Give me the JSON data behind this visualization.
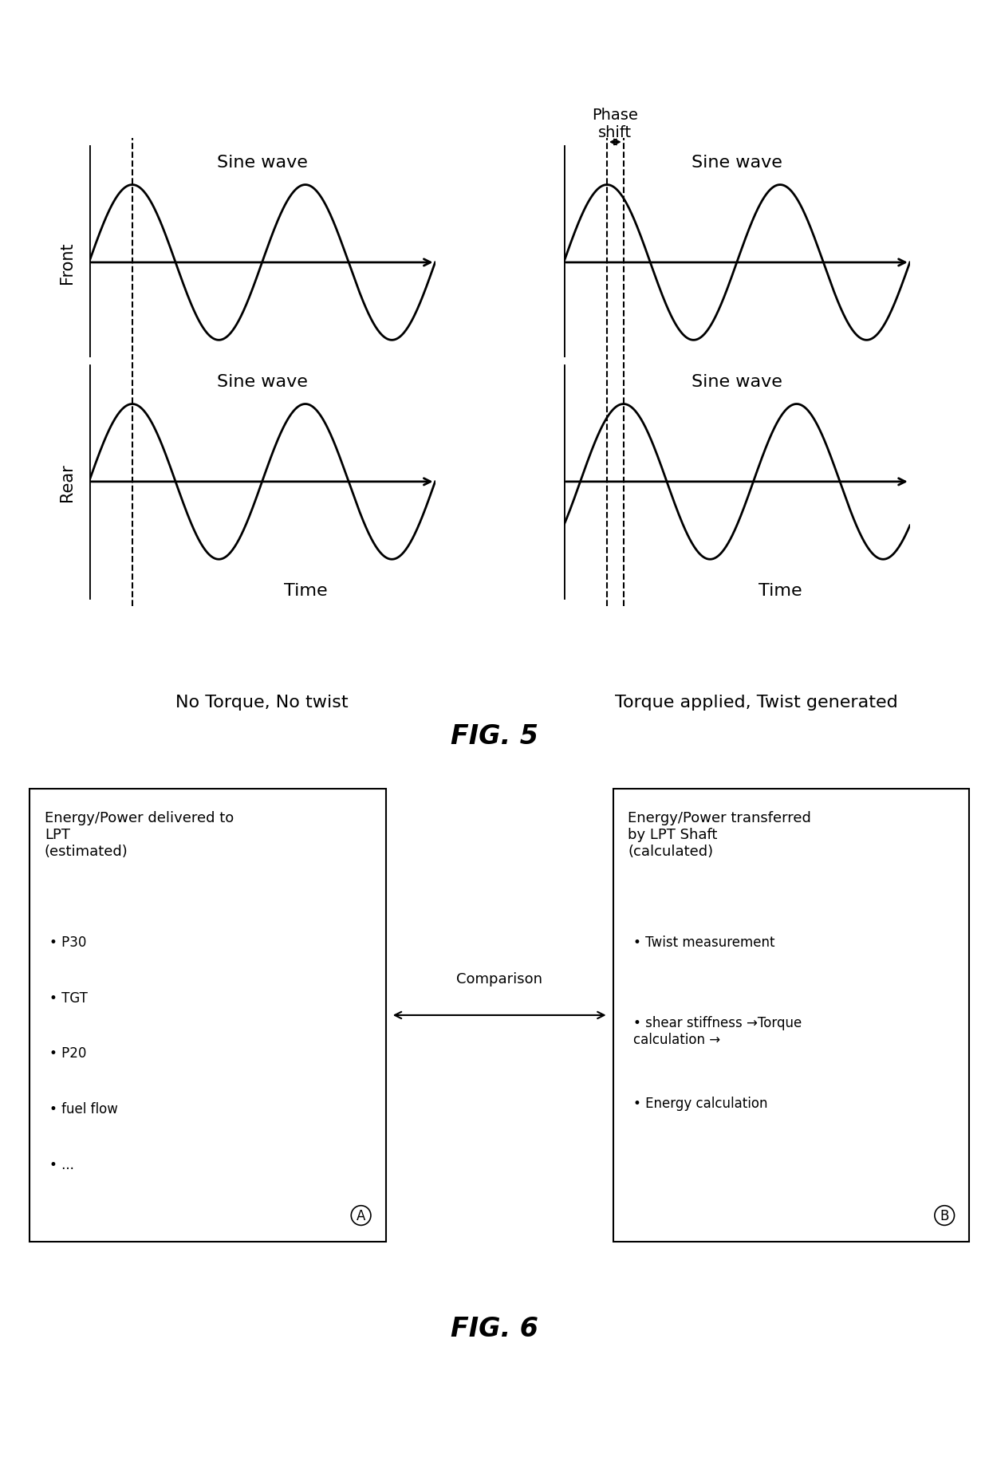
{
  "bg_color": "#ffffff",
  "fig_width": 12.4,
  "fig_height": 18.33,
  "fig5_title": "FIG. 5",
  "fig6_title": "FIG. 6",
  "no_torque_label": "No Torque, No twist",
  "torque_label": "Torque applied, Twist generated",
  "front_label": "Front",
  "rear_label": "Rear",
  "time_label": "Time",
  "sine_wave_label": "Sine wave",
  "phase_shift_label": "Phase\nshift",
  "box_a_title": "Energy/Power delivered to\nLPT\n(estimated)",
  "box_a_bullets": [
    "P30",
    "TGT",
    "P20",
    "fuel flow",
    "..."
  ],
  "box_b_title": "Energy/Power transferred\nby LPT Shaft\n(calculated)",
  "box_b_bullets": [
    "Twist measurement",
    "shear stiffness →Torque\ncalculation →",
    "Energy calculation"
  ],
  "comparison_label": "Comparison",
  "label_A": "A",
  "label_B": "B"
}
